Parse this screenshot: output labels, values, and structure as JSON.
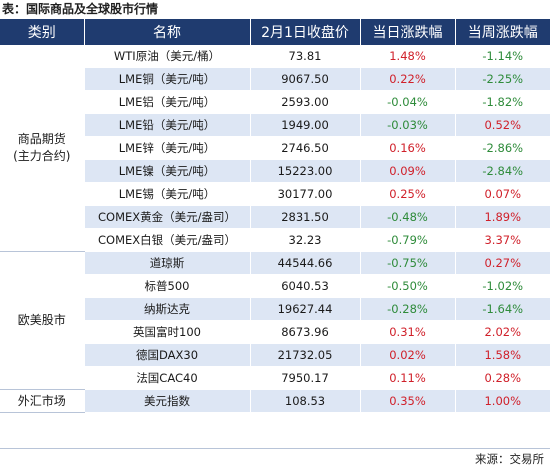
{
  "caption": "表：国际商品及全球股市行情",
  "headers": [
    "类别",
    "名称",
    "2月1日收盘价",
    "当日涨跌幅",
    "当周涨跌幅"
  ],
  "groups": [
    {
      "category": "商品期货(主力合约)",
      "category_lines": [
        "商品期货",
        "(主力合约)"
      ],
      "rows": [
        {
          "name": "WTI原油（美元/桶）",
          "close": "73.81",
          "day": "1.48%",
          "week": "-1.14%"
        },
        {
          "name": "LME铜（美元/吨）",
          "close": "9067.50",
          "day": "0.22%",
          "week": "-2.25%"
        },
        {
          "name": "LME铝（美元/吨）",
          "close": "2593.00",
          "day": "-0.04%",
          "week": "-1.82%"
        },
        {
          "name": "LME铅（美元/吨）",
          "close": "1949.00",
          "day": "-0.03%",
          "week": "0.52%"
        },
        {
          "name": "LME锌（美元/吨）",
          "close": "2746.50",
          "day": "0.16%",
          "week": "-2.86%"
        },
        {
          "name": "LME镍（美元/吨）",
          "close": "15223.00",
          "day": "0.09%",
          "week": "-2.84%"
        },
        {
          "name": "LME锡（美元/吨）",
          "close": "30177.00",
          "day": "0.25%",
          "week": "0.07%"
        },
        {
          "name": "COMEX黄金（美元/盎司）",
          "close": "2831.50",
          "day": "-0.48%",
          "week": "1.89%"
        },
        {
          "name": "COMEX白银（美元/盎司）",
          "close": "32.23",
          "day": "-0.79%",
          "week": "3.37%"
        }
      ]
    },
    {
      "category": "欧美股市",
      "category_lines": [
        "欧美股市"
      ],
      "rows": [
        {
          "name": "道琼斯",
          "close": "44544.66",
          "day": "-0.75%",
          "week": "0.27%"
        },
        {
          "name": "标普500",
          "close": "6040.53",
          "day": "-0.50%",
          "week": "-1.02%"
        },
        {
          "name": "纳斯达克",
          "close": "19627.44",
          "day": "-0.28%",
          "week": "-1.64%"
        },
        {
          "name": "英国富时100",
          "close": "8673.96",
          "day": "0.31%",
          "week": "2.02%"
        },
        {
          "name": "德国DAX30",
          "close": "21732.05",
          "day": "0.02%",
          "week": "1.58%"
        },
        {
          "name": "法国CAC40",
          "close": "7950.17",
          "day": "0.11%",
          "week": "0.28%"
        }
      ]
    },
    {
      "category": "外汇市场",
      "category_lines": [
        "外汇市场"
      ],
      "rows": [
        {
          "name": "美元指数",
          "close": "108.53",
          "day": "0.35%",
          "week": "1.00%"
        }
      ]
    }
  ],
  "source": "来源：交易所",
  "colors": {
    "header_bg": "#1f3b6f",
    "stripe": "#dde6f4",
    "up": "#d0202a",
    "down": "#2e8b3a"
  }
}
